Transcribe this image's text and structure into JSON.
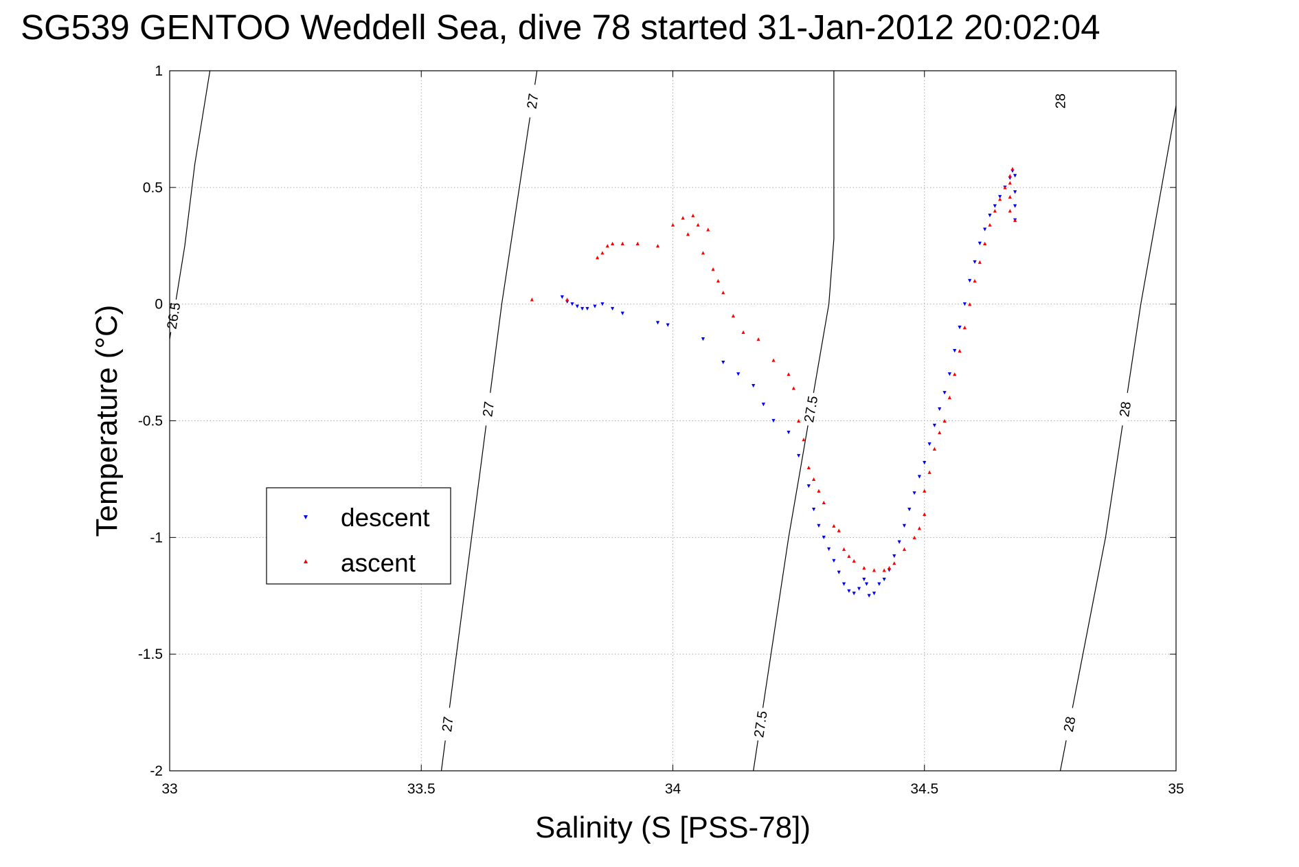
{
  "chart_data": {
    "type": "scatter",
    "title": "SG539 GENTOO Weddell Sea, dive 78 started 31-Jan-2012 20:02:04",
    "xlabel": "Salinity (S [PSS-78])",
    "ylabel": "Temperature (°C)",
    "xlim": [
      33,
      35
    ],
    "ylim": [
      -2,
      1
    ],
    "xticks": [
      33,
      33.5,
      34,
      34.5,
      35
    ],
    "yticks": [
      -2,
      -1.5,
      -1,
      -0.5,
      0,
      0.5,
      1
    ],
    "xtick_labels": [
      "33",
      "33.5",
      "34",
      "34.5",
      "35"
    ],
    "ytick_labels": [
      "-2",
      "-1.5",
      "-1",
      "-0.5",
      "0",
      "0.5",
      "1"
    ],
    "grid": true,
    "legend_position": "left",
    "legend": [
      "descent",
      "ascent"
    ],
    "colors": {
      "descent": "#0000ff",
      "ascent": "#ff0000",
      "contour": "#000000",
      "grid": "#aaaaaa"
    },
    "isopycnals": [
      {
        "level": "26.5",
        "points": [
          [
            33.0,
            -0.15
          ],
          [
            33.03,
            0.25
          ],
          [
            33.05,
            0.6
          ],
          [
            33.08,
            1.0
          ]
        ],
        "labels": [
          {
            "t": -0.05,
            "text": "26.5"
          }
        ]
      },
      {
        "level": "27",
        "points": [
          [
            33.54,
            -2.0
          ],
          [
            33.6,
            -1.0
          ],
          [
            33.66,
            0.0
          ],
          [
            33.73,
            1.0
          ]
        ],
        "labels": [
          {
            "t": -1.8,
            "text": "27"
          },
          {
            "t": -0.45,
            "text": "27"
          },
          {
            "t": 0.87,
            "text": "27"
          }
        ]
      },
      {
        "level": "27.5",
        "points": [
          [
            34.16,
            -2.0
          ],
          [
            34.23,
            -1.0
          ],
          [
            34.31,
            0.0
          ],
          [
            34.32,
            0.28
          ],
          [
            34.32,
            1.0
          ]
        ],
        "labels": [
          {
            "t": -1.8,
            "text": "27.5"
          },
          {
            "t": -0.45,
            "text": "27.5"
          }
        ]
      },
      {
        "level": "28",
        "points": [
          [
            34.77,
            -2.0
          ],
          [
            34.86,
            -1.0
          ],
          [
            34.93,
            0.0
          ],
          [
            35.0,
            0.85
          ]
        ],
        "labels": [
          {
            "t": -1.8,
            "text": "28"
          },
          {
            "t": -0.45,
            "text": "28"
          },
          {
            "t": 0.87,
            "text": "28"
          }
        ]
      }
    ],
    "series": [
      {
        "name": "descent",
        "marker": "triangle-down",
        "points": [
          [
            33.78,
            0.03
          ],
          [
            33.79,
            0.01
          ],
          [
            33.8,
            0.0
          ],
          [
            33.81,
            -0.01
          ],
          [
            33.82,
            -0.02
          ],
          [
            33.83,
            -0.02
          ],
          [
            33.845,
            -0.01
          ],
          [
            33.86,
            0.0
          ],
          [
            33.88,
            -0.02
          ],
          [
            33.9,
            -0.04
          ],
          [
            33.97,
            -0.08
          ],
          [
            33.99,
            -0.09
          ],
          [
            34.06,
            -0.15
          ],
          [
            34.1,
            -0.25
          ],
          [
            34.13,
            -0.3
          ],
          [
            34.16,
            -0.35
          ],
          [
            34.18,
            -0.43
          ],
          [
            34.2,
            -0.5
          ],
          [
            34.23,
            -0.55
          ],
          [
            34.25,
            -0.65
          ],
          [
            34.27,
            -0.78
          ],
          [
            34.28,
            -0.88
          ],
          [
            34.29,
            -0.95
          ],
          [
            34.3,
            -1.0
          ],
          [
            34.31,
            -1.05
          ],
          [
            34.32,
            -1.1
          ],
          [
            34.33,
            -1.15
          ],
          [
            34.34,
            -1.2
          ],
          [
            34.35,
            -1.23
          ],
          [
            34.36,
            -1.24
          ],
          [
            34.37,
            -1.22
          ],
          [
            34.38,
            -1.18
          ],
          [
            34.385,
            -1.2
          ],
          [
            34.39,
            -1.25
          ],
          [
            34.4,
            -1.24
          ],
          [
            34.41,
            -1.2
          ],
          [
            34.42,
            -1.18
          ],
          [
            34.43,
            -1.14
          ],
          [
            34.44,
            -1.08
          ],
          [
            34.45,
            -1.02
          ],
          [
            34.46,
            -0.95
          ],
          [
            34.47,
            -0.88
          ],
          [
            34.48,
            -0.81
          ],
          [
            34.49,
            -0.74
          ],
          [
            34.5,
            -0.68
          ],
          [
            34.51,
            -0.6
          ],
          [
            34.52,
            -0.52
          ],
          [
            34.53,
            -0.45
          ],
          [
            34.54,
            -0.38
          ],
          [
            34.55,
            -0.3
          ],
          [
            34.56,
            -0.2
          ],
          [
            34.57,
            -0.1
          ],
          [
            34.58,
            0.0
          ],
          [
            34.59,
            0.1
          ],
          [
            34.6,
            0.18
          ],
          [
            34.61,
            0.26
          ],
          [
            34.62,
            0.32
          ],
          [
            34.63,
            0.38
          ],
          [
            34.64,
            0.42
          ],
          [
            34.65,
            0.46
          ],
          [
            34.66,
            0.5
          ],
          [
            34.67,
            0.54
          ],
          [
            34.675,
            0.57
          ],
          [
            34.68,
            0.55
          ],
          [
            34.68,
            0.48
          ],
          [
            34.68,
            0.42
          ],
          [
            34.68,
            0.36
          ]
        ]
      },
      {
        "name": "ascent",
        "marker": "triangle-up",
        "points": [
          [
            33.72,
            0.02
          ],
          [
            33.79,
            0.02
          ],
          [
            33.85,
            0.2
          ],
          [
            33.86,
            0.22
          ],
          [
            33.87,
            0.25
          ],
          [
            33.88,
            0.26
          ],
          [
            33.9,
            0.26
          ],
          [
            33.93,
            0.26
          ],
          [
            33.97,
            0.25
          ],
          [
            34.0,
            0.34
          ],
          [
            34.02,
            0.37
          ],
          [
            34.04,
            0.38
          ],
          [
            34.05,
            0.34
          ],
          [
            34.07,
            0.32
          ],
          [
            34.03,
            0.3
          ],
          [
            34.06,
            0.22
          ],
          [
            34.08,
            0.15
          ],
          [
            34.09,
            0.1
          ],
          [
            34.1,
            0.05
          ],
          [
            34.12,
            -0.05
          ],
          [
            34.14,
            -0.12
          ],
          [
            34.17,
            -0.15
          ],
          [
            34.2,
            -0.24
          ],
          [
            34.23,
            -0.3
          ],
          [
            34.24,
            -0.36
          ],
          [
            34.25,
            -0.5
          ],
          [
            34.26,
            -0.58
          ],
          [
            34.27,
            -0.7
          ],
          [
            34.28,
            -0.75
          ],
          [
            34.29,
            -0.8
          ],
          [
            34.3,
            -0.85
          ],
          [
            34.32,
            -0.95
          ],
          [
            34.33,
            -0.97
          ],
          [
            34.34,
            -1.05
          ],
          [
            34.35,
            -1.08
          ],
          [
            34.36,
            -1.1
          ],
          [
            34.38,
            -1.13
          ],
          [
            34.4,
            -1.14
          ],
          [
            34.42,
            -1.14
          ],
          [
            34.43,
            -1.13
          ],
          [
            34.44,
            -1.11
          ],
          [
            34.46,
            -1.05
          ],
          [
            34.48,
            -1.0
          ],
          [
            34.49,
            -0.96
          ],
          [
            34.5,
            -0.9
          ],
          [
            34.5,
            -0.8
          ],
          [
            34.51,
            -0.72
          ],
          [
            34.52,
            -0.62
          ],
          [
            34.53,
            -0.55
          ],
          [
            34.54,
            -0.5
          ],
          [
            34.55,
            -0.4
          ],
          [
            34.56,
            -0.3
          ],
          [
            34.57,
            -0.2
          ],
          [
            34.58,
            -0.1
          ],
          [
            34.59,
            0.0
          ],
          [
            34.6,
            0.1
          ],
          [
            34.61,
            0.18
          ],
          [
            34.62,
            0.26
          ],
          [
            34.63,
            0.34
          ],
          [
            34.64,
            0.4
          ],
          [
            34.65,
            0.45
          ],
          [
            34.66,
            0.5
          ],
          [
            34.67,
            0.55
          ],
          [
            34.675,
            0.58
          ],
          [
            34.67,
            0.52
          ],
          [
            34.67,
            0.46
          ],
          [
            34.67,
            0.4
          ],
          [
            34.68,
            0.36
          ]
        ]
      }
    ]
  }
}
